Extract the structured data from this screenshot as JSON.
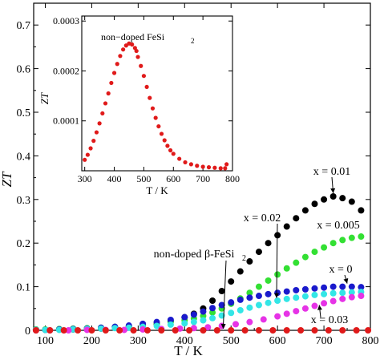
{
  "chart_data": [
    {
      "type": "scatter",
      "title": "",
      "xlabel": "T / K",
      "ylabel": "ZT",
      "xlim": [
        75,
        800
      ],
      "ylim": [
        0,
        0.75
      ],
      "x_ticks": [
        100,
        200,
        300,
        400,
        500,
        600,
        700,
        800
      ],
      "y_ticks": [
        0,
        0.1,
        0.2,
        0.3,
        0.4,
        0.5,
        0.6,
        0.7
      ],
      "x_tick_labels": [
        "100",
        "200",
        "300",
        "400",
        "500",
        "600",
        "700",
        "800"
      ],
      "y_tick_labels": [
        "0",
        "0.1",
        "0.2",
        "0.3",
        "0.4",
        "0.5",
        "0.6",
        "0.7"
      ],
      "grid": false,
      "series": [
        {
          "name": "x = 0.01",
          "color": "#000000",
          "points": [
            [
              80,
              0.001
            ],
            [
              100,
              0.001
            ],
            [
              130,
              0.002
            ],
            [
              160,
              0.002
            ],
            [
              190,
              0.003
            ],
            [
              220,
              0.004
            ],
            [
              250,
              0.006
            ],
            [
              280,
              0.008
            ],
            [
              310,
              0.011
            ],
            [
              340,
              0.015
            ],
            [
              370,
              0.021
            ],
            [
              400,
              0.03
            ],
            [
              420,
              0.038
            ],
            [
              440,
              0.05
            ],
            [
              460,
              0.068
            ],
            [
              480,
              0.09
            ],
            [
              500,
              0.112
            ],
            [
              520,
              0.135
            ],
            [
              540,
              0.158
            ],
            [
              560,
              0.18
            ],
            [
              580,
              0.2
            ],
            [
              600,
              0.218
            ],
            [
              620,
              0.238
            ],
            [
              640,
              0.257
            ],
            [
              660,
              0.275
            ],
            [
              680,
              0.29
            ],
            [
              700,
              0.3
            ],
            [
              720,
              0.307
            ],
            [
              740,
              0.303
            ],
            [
              760,
              0.295
            ],
            [
              780,
              0.275
            ]
          ]
        },
        {
          "name": "x = 0.005",
          "color": "#33e033",
          "points": [
            [
              80,
              0.002
            ],
            [
              100,
              0.002
            ],
            [
              130,
              0.003
            ],
            [
              160,
              0.004
            ],
            [
              190,
              0.005
            ],
            [
              220,
              0.006
            ],
            [
              250,
              0.008
            ],
            [
              280,
              0.01
            ],
            [
              310,
              0.013
            ],
            [
              340,
              0.016
            ],
            [
              370,
              0.019
            ],
            [
              400,
              0.023
            ],
            [
              420,
              0.027
            ],
            [
              440,
              0.033
            ],
            [
              460,
              0.041
            ],
            [
              480,
              0.05
            ],
            [
              500,
              0.061
            ],
            [
              520,
              0.073
            ],
            [
              540,
              0.086
            ],
            [
              560,
              0.1
            ],
            [
              580,
              0.114
            ],
            [
              600,
              0.128
            ],
            [
              620,
              0.142
            ],
            [
              640,
              0.155
            ],
            [
              660,
              0.168
            ],
            [
              680,
              0.18
            ],
            [
              700,
              0.19
            ],
            [
              720,
              0.2
            ],
            [
              740,
              0.207
            ],
            [
              760,
              0.212
            ],
            [
              780,
              0.215
            ]
          ]
        },
        {
          "name": "x = 0",
          "color": "#1a1acc",
          "points": [
            [
              80,
              0.001
            ],
            [
              100,
              0.001
            ],
            [
              130,
              0.002
            ],
            [
              160,
              0.003
            ],
            [
              190,
              0.004
            ],
            [
              220,
              0.006
            ],
            [
              250,
              0.008
            ],
            [
              280,
              0.011
            ],
            [
              310,
              0.015
            ],
            [
              340,
              0.019
            ],
            [
              370,
              0.024
            ],
            [
              400,
              0.03
            ],
            [
              420,
              0.036
            ],
            [
              440,
              0.043
            ],
            [
              460,
              0.051
            ],
            [
              480,
              0.058
            ],
            [
              500,
              0.064
            ],
            [
              520,
              0.07
            ],
            [
              540,
              0.075
            ],
            [
              560,
              0.079
            ],
            [
              580,
              0.083
            ],
            [
              600,
              0.086
            ],
            [
              620,
              0.089
            ],
            [
              640,
              0.092
            ],
            [
              660,
              0.094
            ],
            [
              680,
              0.096
            ],
            [
              700,
              0.098
            ],
            [
              720,
              0.1
            ],
            [
              740,
              0.1
            ],
            [
              760,
              0.1
            ],
            [
              780,
              0.099
            ]
          ]
        },
        {
          "name": "x = 0.02",
          "color": "#33e6e6",
          "points": [
            [
              80,
              0.001
            ],
            [
              100,
              0.001
            ],
            [
              130,
              0.001
            ],
            [
              160,
              0.002
            ],
            [
              190,
              0.003
            ],
            [
              220,
              0.004
            ],
            [
              250,
              0.005
            ],
            [
              280,
              0.006
            ],
            [
              310,
              0.008
            ],
            [
              340,
              0.01
            ],
            [
              370,
              0.013
            ],
            [
              400,
              0.016
            ],
            [
              420,
              0.019
            ],
            [
              440,
              0.023
            ],
            [
              460,
              0.028
            ],
            [
              480,
              0.034
            ],
            [
              500,
              0.04
            ],
            [
              520,
              0.046
            ],
            [
              540,
              0.052
            ],
            [
              560,
              0.058
            ],
            [
              580,
              0.063
            ],
            [
              600,
              0.068
            ],
            [
              620,
              0.072
            ],
            [
              640,
              0.075
            ],
            [
              660,
              0.078
            ],
            [
              680,
              0.081
            ],
            [
              700,
              0.083
            ],
            [
              720,
              0.085
            ],
            [
              740,
              0.086
            ],
            [
              760,
              0.087
            ],
            [
              780,
              0.088
            ]
          ]
        },
        {
          "name": "x = 0.03",
          "color": "#e633e6",
          "points": [
            [
              80,
              0.0
            ],
            [
              110,
              0.0
            ],
            [
              150,
              0.0
            ],
            [
              190,
              0.001
            ],
            [
              230,
              0.001
            ],
            [
              270,
              0.001
            ],
            [
              310,
              0.002
            ],
            [
              350,
              0.003
            ],
            [
              390,
              0.004
            ],
            [
              420,
              0.005
            ],
            [
              450,
              0.007
            ],
            [
              480,
              0.01
            ],
            [
              510,
              0.014
            ],
            [
              540,
              0.019
            ],
            [
              570,
              0.025
            ],
            [
              600,
              0.032
            ],
            [
              620,
              0.038
            ],
            [
              640,
              0.044
            ],
            [
              660,
              0.05
            ],
            [
              680,
              0.056
            ],
            [
              700,
              0.062
            ],
            [
              720,
              0.067
            ],
            [
              740,
              0.072
            ],
            [
              760,
              0.076
            ],
            [
              780,
              0.079
            ]
          ]
        },
        {
          "name": "non-doped β-FeSi2",
          "color": "#e01a1a",
          "points": [
            [
              80,
              0.0
            ],
            [
              110,
              0.0
            ],
            [
              140,
              0.0
            ],
            [
              170,
              0.0
            ],
            [
              200,
              0.0
            ],
            [
              230,
              0.0
            ],
            [
              260,
              0.0
            ],
            [
              290,
              0.0
            ],
            [
              320,
              0.0
            ],
            [
              350,
              0.0
            ],
            [
              380,
              0.0
            ],
            [
              410,
              0.0
            ],
            [
              440,
              0.0
            ],
            [
              470,
              0.0
            ],
            [
              500,
              0.0
            ],
            [
              530,
              0.0
            ],
            [
              560,
              0.0
            ],
            [
              590,
              0.0
            ],
            [
              620,
              0.0
            ],
            [
              650,
              0.0
            ],
            [
              680,
              0.0
            ],
            [
              710,
              0.0
            ],
            [
              740,
              0.0
            ],
            [
              770,
              0.0
            ],
            [
              795,
              0.0
            ]
          ]
        }
      ],
      "annotations": [
        {
          "text": "x = 0.01",
          "arrow_to": [
            720,
            0.307
          ]
        },
        {
          "text": "x = 0.02",
          "arrow_to": [
            598,
            0.074
          ]
        },
        {
          "text": "x = 0.005",
          "arrow_to": null
        },
        {
          "text": "non-doped β-FeSi",
          "subscript": "2",
          "arrow_to": [
            483,
            0.0
          ]
        },
        {
          "text": "x = 0",
          "arrow_to": [
            750,
            0.1
          ]
        },
        {
          "text": "x = 0.03",
          "arrow_to": [
            690,
            0.058
          ]
        }
      ]
    },
    {
      "type": "scatter",
      "title": "",
      "xlabel": "T / K",
      "ylabel": "ZT",
      "xlim": [
        290,
        800
      ],
      "ylim": [
        0,
        0.00031
      ],
      "x_ticks": [
        300,
        400,
        500,
        600,
        700,
        800
      ],
      "y_ticks": [
        0.0001,
        0.0002,
        0.0003
      ],
      "x_tick_labels": [
        "300",
        "400",
        "500",
        "600",
        "700",
        "800"
      ],
      "y_tick_labels": [
        "0.0001",
        "0.0002",
        "0.0003"
      ],
      "grid": false,
      "series": [
        {
          "name": "non−doped FeSi",
          "name_subscript": "2",
          "color": "#e01a1a",
          "points": [
            [
              300,
              2.2e-05
            ],
            [
              310,
              3.2e-05
            ],
            [
              320,
              4.5e-05
            ],
            [
              330,
              6e-05
            ],
            [
              340,
              7.7e-05
            ],
            [
              350,
              9.5e-05
            ],
            [
              360,
              0.000115
            ],
            [
              370,
              0.000135
            ],
            [
              380,
              0.000155
            ],
            [
              390,
              0.000176
            ],
            [
              400,
              0.000196
            ],
            [
              410,
              0.000214
            ],
            [
              420,
              0.00023
            ],
            [
              430,
              0.000243
            ],
            [
              440,
              0.000251
            ],
            [
              450,
              0.000255
            ],
            [
              460,
              0.000253
            ],
            [
              470,
              0.000246
            ],
            [
              475,
              0.00024
            ],
            [
              480,
              0.000228
            ],
            [
              490,
              0.00021
            ],
            [
              500,
              0.00019
            ],
            [
              510,
              0.000168
            ],
            [
              520,
              0.000146
            ],
            [
              530,
              0.000125
            ],
            [
              540,
              0.000106
            ],
            [
              550,
              8.9e-05
            ],
            [
              560,
              7.4e-05
            ],
            [
              570,
              6.1e-05
            ],
            [
              580,
              5e-05
            ],
            [
              590,
              4.1e-05
            ],
            [
              600,
              3.4e-05
            ],
            [
              620,
              2.4e-05
            ],
            [
              640,
              1.7e-05
            ],
            [
              660,
              1.3e-05
            ],
            [
              680,
              1e-05
            ],
            [
              700,
              8e-06
            ],
            [
              720,
              7e-06
            ],
            [
              740,
              6e-06
            ],
            [
              760,
              5e-06
            ],
            [
              775,
              5e-06
            ],
            [
              780,
              1.3e-05
            ]
          ]
        }
      ]
    }
  ]
}
